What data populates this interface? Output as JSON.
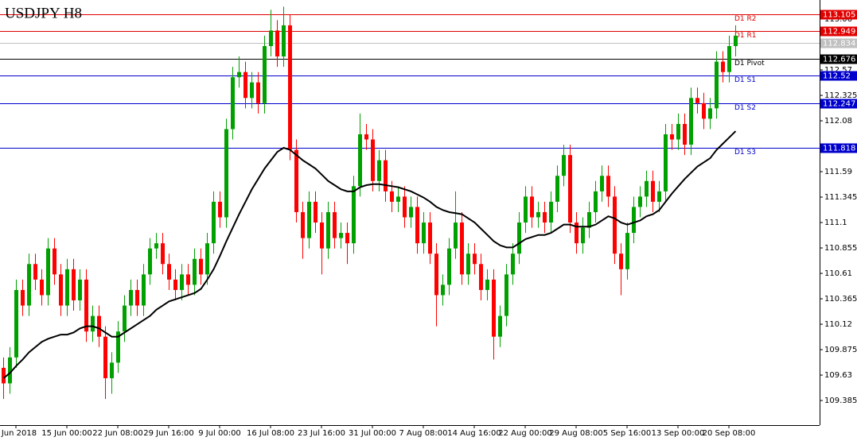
{
  "chart_data": {
    "type": "candlestick",
    "title": "USDJPY H8",
    "up_color": "#00a000",
    "down_color": "#ff0000",
    "ylim": [
      109.148,
      113.244
    ],
    "yticks": [
      113.06,
      112.57,
      112.325,
      112.08,
      111.59,
      111.345,
      111.1,
      110.855,
      110.61,
      110.365,
      110.12,
      109.875,
      109.63,
      109.385
    ],
    "categories": [
      null,
      null,
      "Jun 2018",
      null,
      null,
      null,
      null,
      null,
      null,
      null,
      "15 Jun 00:00",
      null,
      null,
      null,
      null,
      null,
      null,
      null,
      "22 Jun 08:00",
      null,
      null,
      null,
      null,
      null,
      null,
      null,
      "29 Jun 16:00",
      null,
      null,
      null,
      null,
      null,
      null,
      null,
      "9 Jul 00:00",
      null,
      null,
      null,
      null,
      null,
      null,
      null,
      "16 Jul 08:00",
      null,
      null,
      null,
      null,
      null,
      null,
      null,
      "23 Jul 16:00",
      null,
      null,
      null,
      null,
      null,
      null,
      null,
      "31 Jul 00:00",
      null,
      null,
      null,
      null,
      null,
      null,
      null,
      "7 Aug 08:00",
      null,
      null,
      null,
      null,
      null,
      null,
      null,
      "14 Aug 16:00",
      null,
      null,
      null,
      null,
      null,
      null,
      null,
      "22 Aug 00:00",
      null,
      null,
      null,
      null,
      null,
      null,
      null,
      "29 Aug 08:00",
      null,
      null,
      null,
      null,
      null,
      null,
      null,
      "5 Sep 16:00",
      null,
      null,
      null,
      null,
      null,
      null,
      null,
      "13 Sep 00:00",
      null,
      null,
      null,
      null,
      null,
      null,
      null,
      "20 Sep 08:00",
      null
    ],
    "candles": [
      [
        109.7,
        109.8,
        109.4,
        109.55
      ],
      [
        109.55,
        109.9,
        109.45,
        109.8
      ],
      [
        109.8,
        110.55,
        109.7,
        110.45
      ],
      [
        110.45,
        110.55,
        110.2,
        110.3
      ],
      [
        110.3,
        110.8,
        110.2,
        110.7
      ],
      [
        110.7,
        110.8,
        110.45,
        110.55
      ],
      [
        110.55,
        110.65,
        110.3,
        110.4
      ],
      [
        110.4,
        110.95,
        110.3,
        110.85
      ],
      [
        110.85,
        110.95,
        110.5,
        110.6
      ],
      [
        110.6,
        110.7,
        110.2,
        110.3
      ],
      [
        110.3,
        110.75,
        110.2,
        110.65
      ],
      [
        110.65,
        110.75,
        110.25,
        110.35
      ],
      [
        110.35,
        110.65,
        110.25,
        110.55
      ],
      [
        110.55,
        110.65,
        109.95,
        110.05
      ],
      [
        110.05,
        110.3,
        109.95,
        110.2
      ],
      [
        110.2,
        110.3,
        109.9,
        110.0
      ],
      [
        110.0,
        110.1,
        109.4,
        109.6
      ],
      [
        109.6,
        109.85,
        109.45,
        109.75
      ],
      [
        109.75,
        110.15,
        109.65,
        110.05
      ],
      [
        110.05,
        110.4,
        109.95,
        110.3
      ],
      [
        110.3,
        110.55,
        110.2,
        110.45
      ],
      [
        110.45,
        110.55,
        110.2,
        110.3
      ],
      [
        110.3,
        110.7,
        110.2,
        110.6
      ],
      [
        110.6,
        110.95,
        110.5,
        110.85
      ],
      [
        110.85,
        111.0,
        110.75,
        110.9
      ],
      [
        110.9,
        111.0,
        110.6,
        110.7
      ],
      [
        110.7,
        110.8,
        110.45,
        110.55
      ],
      [
        110.55,
        110.65,
        110.35,
        110.45
      ],
      [
        110.45,
        110.7,
        110.35,
        110.6
      ],
      [
        110.6,
        110.7,
        110.4,
        110.5
      ],
      [
        110.5,
        110.85,
        110.4,
        110.75
      ],
      [
        110.75,
        110.85,
        110.5,
        110.6
      ],
      [
        110.6,
        111.0,
        110.5,
        110.9
      ],
      [
        110.9,
        111.4,
        110.8,
        111.3
      ],
      [
        111.3,
        111.4,
        111.05,
        111.15
      ],
      [
        111.15,
        112.1,
        111.05,
        112.0
      ],
      [
        112.0,
        112.6,
        111.9,
        112.5
      ],
      [
        112.5,
        112.7,
        112.4,
        112.55
      ],
      [
        112.55,
        112.65,
        112.2,
        112.3
      ],
      [
        112.3,
        112.55,
        112.2,
        112.45
      ],
      [
        112.45,
        112.55,
        112.15,
        112.25
      ],
      [
        112.25,
        112.9,
        112.15,
        112.8
      ],
      [
        112.8,
        113.15,
        112.7,
        112.95
      ],
      [
        112.95,
        113.05,
        112.6,
        112.7
      ],
      [
        112.7,
        113.18,
        112.6,
        113.0
      ],
      [
        113.0,
        113.1,
        111.7,
        111.8
      ],
      [
        111.8,
        111.9,
        111.1,
        111.2
      ],
      [
        111.2,
        111.3,
        110.75,
        110.95
      ],
      [
        110.95,
        111.4,
        110.85,
        111.3
      ],
      [
        111.3,
        111.4,
        111.0,
        111.1
      ],
      [
        111.1,
        111.2,
        110.6,
        110.85
      ],
      [
        110.85,
        111.3,
        110.75,
        111.2
      ],
      [
        111.2,
        111.3,
        110.85,
        110.95
      ],
      [
        110.95,
        111.1,
        110.85,
        111.0
      ],
      [
        111.0,
        111.1,
        110.7,
        110.9
      ],
      [
        110.9,
        111.55,
        110.8,
        111.45
      ],
      [
        111.45,
        112.15,
        111.35,
        111.95
      ],
      [
        111.95,
        112.05,
        111.8,
        111.9
      ],
      [
        111.9,
        112.0,
        111.4,
        111.5
      ],
      [
        111.5,
        111.8,
        111.4,
        111.7
      ],
      [
        111.7,
        111.8,
        111.3,
        111.4
      ],
      [
        111.4,
        111.5,
        111.2,
        111.3
      ],
      [
        111.3,
        111.45,
        111.2,
        111.35
      ],
      [
        111.35,
        111.45,
        111.05,
        111.15
      ],
      [
        111.15,
        111.35,
        111.05,
        111.25
      ],
      [
        111.25,
        111.35,
        110.8,
        110.9
      ],
      [
        110.9,
        111.2,
        110.8,
        111.1
      ],
      [
        111.1,
        111.2,
        110.7,
        110.8
      ],
      [
        110.8,
        110.9,
        110.1,
        110.4
      ],
      [
        110.4,
        110.6,
        110.3,
        110.5
      ],
      [
        110.5,
        110.95,
        110.4,
        110.85
      ],
      [
        110.85,
        111.4,
        110.75,
        111.1
      ],
      [
        111.1,
        111.2,
        110.5,
        110.6
      ],
      [
        110.6,
        110.9,
        110.5,
        110.8
      ],
      [
        110.8,
        110.9,
        110.6,
        110.7
      ],
      [
        110.7,
        110.8,
        110.35,
        110.45
      ],
      [
        110.45,
        110.65,
        110.35,
        110.55
      ],
      [
        110.55,
        110.65,
        109.78,
        110.0
      ],
      [
        110.0,
        110.3,
        109.9,
        110.2
      ],
      [
        110.2,
        110.7,
        110.1,
        110.6
      ],
      [
        110.6,
        110.9,
        110.5,
        110.8
      ],
      [
        110.8,
        111.2,
        110.7,
        111.1
      ],
      [
        111.1,
        111.45,
        111.0,
        111.35
      ],
      [
        111.35,
        111.45,
        111.05,
        111.15
      ],
      [
        111.15,
        111.3,
        111.05,
        111.2
      ],
      [
        111.2,
        111.3,
        111.0,
        111.1
      ],
      [
        111.1,
        111.4,
        111.0,
        111.3
      ],
      [
        111.3,
        111.65,
        111.2,
        111.55
      ],
      [
        111.55,
        111.85,
        111.45,
        111.75
      ],
      [
        111.75,
        111.85,
        111.0,
        111.1
      ],
      [
        111.1,
        111.2,
        110.8,
        110.9
      ],
      [
        110.9,
        111.15,
        110.8,
        111.05
      ],
      [
        111.05,
        111.3,
        110.95,
        111.2
      ],
      [
        111.2,
        111.5,
        111.1,
        111.4
      ],
      [
        111.4,
        111.65,
        111.3,
        111.55
      ],
      [
        111.55,
        111.65,
        111.25,
        111.35
      ],
      [
        111.35,
        111.45,
        110.7,
        110.8
      ],
      [
        110.8,
        110.9,
        110.4,
        110.65
      ],
      [
        110.65,
        111.1,
        110.55,
        111.0
      ],
      [
        111.0,
        111.35,
        110.9,
        111.25
      ],
      [
        111.25,
        111.45,
        111.15,
        111.35
      ],
      [
        111.35,
        111.6,
        111.25,
        111.5
      ],
      [
        111.5,
        111.6,
        111.2,
        111.3
      ],
      [
        111.3,
        111.5,
        111.2,
        111.4
      ],
      [
        111.4,
        112.05,
        111.3,
        111.95
      ],
      [
        111.95,
        112.05,
        111.8,
        111.9
      ],
      [
        111.9,
        112.15,
        111.8,
        112.05
      ],
      [
        112.05,
        112.15,
        111.75,
        111.85
      ],
      [
        111.85,
        112.4,
        111.75,
        112.3
      ],
      [
        112.3,
        112.4,
        112.15,
        112.25
      ],
      [
        112.25,
        112.35,
        112.0,
        112.1
      ],
      [
        112.1,
        112.3,
        112.0,
        112.2
      ],
      [
        112.2,
        112.75,
        112.1,
        112.65
      ],
      [
        112.65,
        112.75,
        112.45,
        112.55
      ],
      [
        112.55,
        112.9,
        112.45,
        112.8
      ],
      [
        112.8,
        113.0,
        112.7,
        112.9
      ]
    ],
    "ma": {
      "color": "#000000",
      "values": [
        109.6,
        109.65,
        109.72,
        109.78,
        109.85,
        109.9,
        109.95,
        109.98,
        110.0,
        110.02,
        110.02,
        110.04,
        110.08,
        110.1,
        110.1,
        110.08,
        110.04,
        110.0,
        110.0,
        110.04,
        110.08,
        110.12,
        110.16,
        110.2,
        110.26,
        110.3,
        110.34,
        110.36,
        110.38,
        110.4,
        110.42,
        110.46,
        110.55,
        110.65,
        110.78,
        110.92,
        111.05,
        111.18,
        111.3,
        111.42,
        111.52,
        111.62,
        111.7,
        111.78,
        111.82,
        111.8,
        111.75,
        111.7,
        111.66,
        111.62,
        111.56,
        111.5,
        111.46,
        111.42,
        111.4,
        111.4,
        111.44,
        111.46,
        111.47,
        111.47,
        111.46,
        111.45,
        111.44,
        111.42,
        111.4,
        111.37,
        111.34,
        111.3,
        111.25,
        111.22,
        111.2,
        111.19,
        111.18,
        111.14,
        111.1,
        111.04,
        110.98,
        110.92,
        110.88,
        110.86,
        110.86,
        110.9,
        110.94,
        110.96,
        110.98,
        110.98,
        111.0,
        111.04,
        111.08,
        111.08,
        111.06,
        111.06,
        111.06,
        111.08,
        111.12,
        111.16,
        111.14,
        111.1,
        111.08,
        111.1,
        111.12,
        111.16,
        111.18,
        111.22,
        111.3,
        111.38,
        111.45,
        111.52,
        111.58,
        111.64,
        111.68,
        111.72,
        111.8,
        111.86,
        111.92,
        111.98
      ]
    },
    "levels": [
      {
        "name": "D1 R2",
        "value": 113.105,
        "color": "#e00000"
      },
      {
        "name": "D1 R1",
        "value": 112.949,
        "color": "#e00000"
      },
      {
        "name": "D1 Pivot",
        "value": 112.676,
        "color": "#000000"
      },
      {
        "name": "D1 S1",
        "value": 112.52,
        "color": "#0000cc"
      },
      {
        "name": "D1 S2",
        "value": 112.247,
        "color": "#0000cc"
      },
      {
        "name": "D1 S3",
        "value": 111.818,
        "color": "#0000cc"
      }
    ],
    "bid": {
      "value": 112.834,
      "color": "#c0c0c0"
    }
  }
}
